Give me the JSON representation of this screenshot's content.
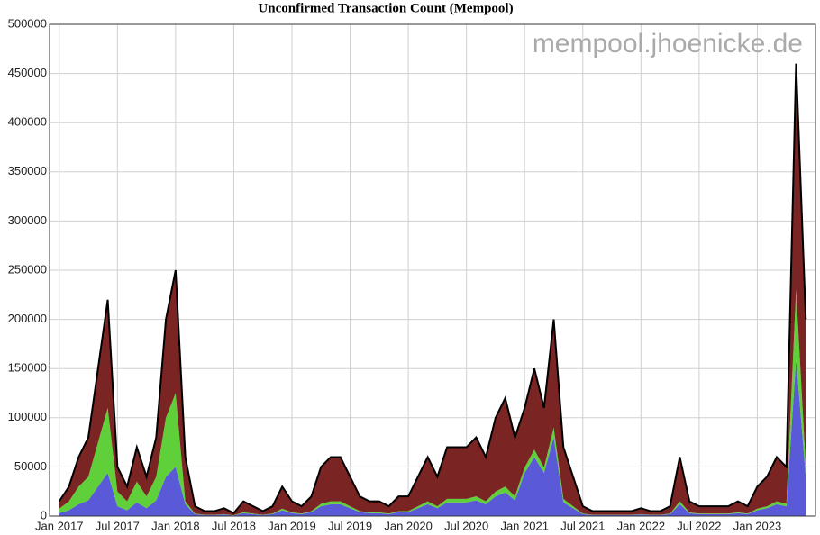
{
  "chart_data": {
    "type": "stacked_area",
    "title": "Unconfirmed Transaction Count (Mempool)",
    "annotation": "mempool.jhoenicke.de",
    "x": [
      "2017-01",
      "2017-02",
      "2017-03",
      "2017-04",
      "2017-05",
      "2017-06",
      "2017-07",
      "2017-08",
      "2017-09",
      "2017-10",
      "2017-11",
      "2017-12",
      "2018-01",
      "2018-02",
      "2018-03",
      "2018-04",
      "2018-05",
      "2018-06",
      "2018-07",
      "2018-08",
      "2018-09",
      "2018-10",
      "2018-11",
      "2018-12",
      "2019-01",
      "2019-02",
      "2019-03",
      "2019-04",
      "2019-05",
      "2019-06",
      "2019-07",
      "2019-08",
      "2019-09",
      "2019-10",
      "2019-11",
      "2019-12",
      "2020-01",
      "2020-02",
      "2020-03",
      "2020-04",
      "2020-05",
      "2020-06",
      "2020-07",
      "2020-08",
      "2020-09",
      "2020-10",
      "2020-11",
      "2020-12",
      "2021-01",
      "2021-02",
      "2021-03",
      "2021-04",
      "2021-05",
      "2021-06",
      "2021-07",
      "2021-08",
      "2021-09",
      "2021-10",
      "2021-11",
      "2021-12",
      "2022-01",
      "2022-02",
      "2022-03",
      "2022-04",
      "2022-05",
      "2022-06",
      "2022-07",
      "2022-08",
      "2022-09",
      "2022-10",
      "2022-11",
      "2022-12",
      "2023-01",
      "2023-02",
      "2023-03",
      "2023-04",
      "2023-05",
      "2023-06"
    ],
    "series": [
      {
        "color": "#5a5ad8",
        "values": [
          3000,
          6000,
          12000,
          16000,
          30000,
          44000,
          10000,
          6000,
          14000,
          8000,
          16000,
          40000,
          50000,
          12000,
          2000,
          1000,
          1000,
          1600,
          600,
          3000,
          2000,
          1000,
          2000,
          6000,
          3000,
          2000,
          4000,
          10000,
          12000,
          12000,
          8000,
          4000,
          3000,
          3000,
          2000,
          4000,
          4000,
          8000,
          12000,
          8000,
          14000,
          14000,
          14000,
          16000,
          12000,
          20000,
          24000,
          16000,
          44000,
          60000,
          44000,
          80000,
          14000,
          8000,
          2000,
          1000,
          1000,
          1000,
          1000,
          1000,
          1600,
          1000,
          1000,
          2000,
          12000,
          3000,
          2000,
          2000,
          2000,
          2000,
          3000,
          2000,
          6000,
          8000,
          12000,
          10000,
          160000,
          40000
        ]
      },
      {
        "color": "#5fd03a",
        "values": [
          4500,
          9000,
          18000,
          24000,
          45000,
          66000,
          15000,
          9000,
          21000,
          12000,
          24000,
          60000,
          75000,
          3000,
          500,
          250,
          250,
          400,
          150,
          750,
          500,
          250,
          500,
          1500,
          750,
          500,
          1000,
          2500,
          3000,
          3000,
          2000,
          1000,
          750,
          750,
          500,
          1000,
          1000,
          2000,
          3000,
          2000,
          3500,
          3500,
          3500,
          4000,
          3000,
          5000,
          6000,
          4000,
          5500,
          7500,
          5500,
          10000,
          3500,
          2000,
          500,
          250,
          250,
          250,
          250,
          250,
          400,
          250,
          250,
          500,
          3000,
          750,
          500,
          500,
          500,
          500,
          750,
          500,
          1500,
          2000,
          3000,
          2500,
          70000,
          10000
        ]
      },
      {
        "color": "#7a2424",
        "line_color": "#000000",
        "values": [
          7500,
          15000,
          30000,
          40000,
          75000,
          110000,
          25000,
          15000,
          35000,
          20000,
          40000,
          100000,
          125000,
          45000,
          7500,
          3750,
          3750,
          6000,
          2250,
          11250,
          7500,
          3750,
          7500,
          22500,
          11250,
          7500,
          15000,
          37500,
          45000,
          45000,
          30000,
          15000,
          11250,
          11250,
          7500,
          15000,
          15000,
          30000,
          45000,
          30000,
          52500,
          52500,
          52500,
          60000,
          45000,
          75000,
          90000,
          60000,
          60500,
          82500,
          60500,
          110000,
          52500,
          30000,
          7500,
          3750,
          3750,
          3750,
          3750,
          3750,
          6000,
          3750,
          3750,
          7500,
          45000,
          11250,
          7500,
          7500,
          7500,
          7500,
          11250,
          7500,
          22500,
          30000,
          45000,
          37500,
          230000,
          150000
        ]
      }
    ],
    "xlim": [
      "2016-12",
      "2023-07"
    ],
    "xticks": [
      {
        "value": "2017-01",
        "label": "Jan 2017"
      },
      {
        "value": "2017-07",
        "label": "Jul 2017"
      },
      {
        "value": "2018-01",
        "label": "Jan 2018"
      },
      {
        "value": "2018-07",
        "label": "Jul 2018"
      },
      {
        "value": "2019-01",
        "label": "Jan 2019"
      },
      {
        "value": "2019-07",
        "label": "Jul 2019"
      },
      {
        "value": "2020-01",
        "label": "Jan 2020"
      },
      {
        "value": "2020-07",
        "label": "Jul 2020"
      },
      {
        "value": "2021-01",
        "label": "Jan 2021"
      },
      {
        "value": "2021-07",
        "label": "Jul 2021"
      },
      {
        "value": "2022-01",
        "label": "Jan 2022"
      },
      {
        "value": "2022-07",
        "label": "Jul 2022"
      },
      {
        "value": "2023-01",
        "label": "Jan 2023"
      }
    ],
    "ylim": [
      0,
      500000
    ],
    "yticks": [
      0,
      50000,
      100000,
      150000,
      200000,
      250000,
      300000,
      350000,
      400000,
      450000,
      500000
    ],
    "grid": true
  }
}
